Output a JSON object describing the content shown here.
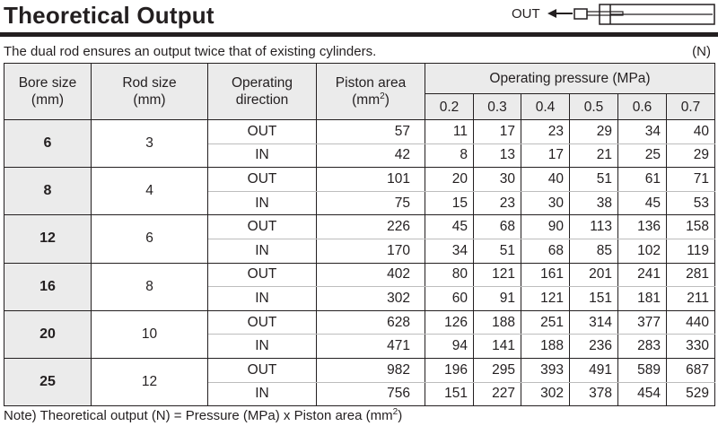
{
  "title": "Theoretical Output",
  "subtitle": "The dual rod ensures an output twice that of existing cylinders.",
  "unit": "(N)",
  "diagram": {
    "label": "OUT",
    "icon": "cylinder-arrow-icon"
  },
  "table": {
    "headers": {
      "bore_line1": "Bore size",
      "bore_line2": "(mm)",
      "rod_line1": "Rod size",
      "rod_line2": "(mm)",
      "dir_line1": "Operating",
      "dir_line2": "direction",
      "area_line1": "Piston area",
      "area_line2": "(mm",
      "area_sup": "2",
      "area_close": ")",
      "pressure": "Operating pressure (MPa)",
      "pressures": [
        "0.2",
        "0.3",
        "0.4",
        "0.5",
        "0.6",
        "0.7"
      ]
    },
    "rows": [
      {
        "bore": "6",
        "rod": "3",
        "out": {
          "dir": "OUT",
          "area": "57",
          "values": [
            "11",
            "17",
            "23",
            "29",
            "34",
            "40"
          ]
        },
        "in": {
          "dir": "IN",
          "area": "42",
          "values": [
            "8",
            "13",
            "17",
            "21",
            "25",
            "29"
          ]
        }
      },
      {
        "bore": "8",
        "rod": "4",
        "out": {
          "dir": "OUT",
          "area": "101",
          "values": [
            "20",
            "30",
            "40",
            "51",
            "61",
            "71"
          ]
        },
        "in": {
          "dir": "IN",
          "area": "75",
          "values": [
            "15",
            "23",
            "30",
            "38",
            "45",
            "53"
          ]
        }
      },
      {
        "bore": "12",
        "rod": "6",
        "out": {
          "dir": "OUT",
          "area": "226",
          "values": [
            "45",
            "68",
            "90",
            "113",
            "136",
            "158"
          ]
        },
        "in": {
          "dir": "IN",
          "area": "170",
          "values": [
            "34",
            "51",
            "68",
            "85",
            "102",
            "119"
          ]
        }
      },
      {
        "bore": "16",
        "rod": "8",
        "out": {
          "dir": "OUT",
          "area": "402",
          "values": [
            "80",
            "121",
            "161",
            "201",
            "241",
            "281"
          ]
        },
        "in": {
          "dir": "IN",
          "area": "302",
          "values": [
            "60",
            "91",
            "121",
            "151",
            "181",
            "211"
          ]
        }
      },
      {
        "bore": "20",
        "rod": "10",
        "out": {
          "dir": "OUT",
          "area": "628",
          "values": [
            "126",
            "188",
            "251",
            "314",
            "377",
            "440"
          ]
        },
        "in": {
          "dir": "IN",
          "area": "471",
          "values": [
            "94",
            "141",
            "188",
            "236",
            "283",
            "330"
          ]
        }
      },
      {
        "bore": "25",
        "rod": "12",
        "out": {
          "dir": "OUT",
          "area": "982",
          "values": [
            "196",
            "295",
            "393",
            "491",
            "589",
            "687"
          ]
        },
        "in": {
          "dir": "IN",
          "area": "756",
          "values": [
            "151",
            "227",
            "302",
            "378",
            "454",
            "529"
          ]
        }
      }
    ]
  },
  "note": {
    "text": "Note) Theoretical output (N) = Pressure (MPa) x Piston area (mm",
    "sup": "2",
    "close": ")"
  }
}
